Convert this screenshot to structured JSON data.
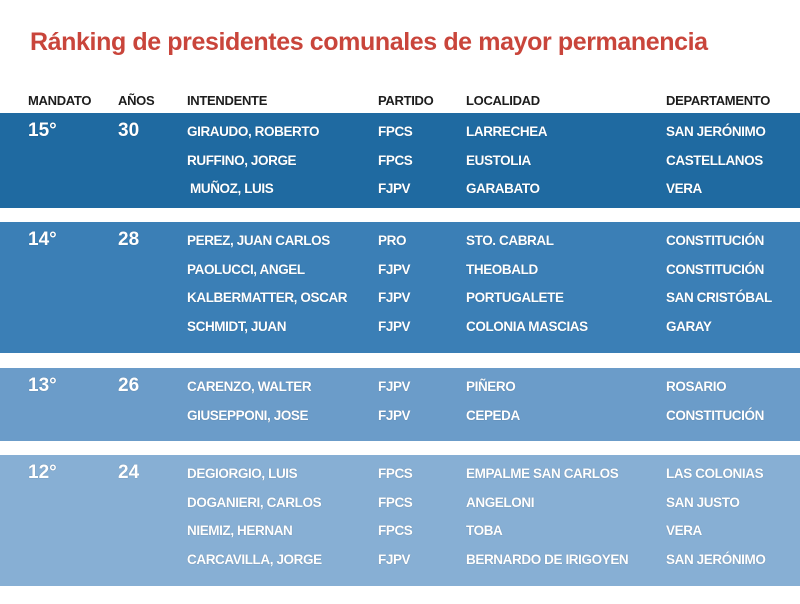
{
  "title": "Ránking de presidentes comunales  de mayor permanencia",
  "table": {
    "headers": [
      "MANDATO",
      "AÑOS",
      "INTENDENTE",
      "PARTIDO",
      "LOCALIDAD",
      "DEPARTAMENTO"
    ],
    "groups": [
      {
        "mandato": "15°",
        "years": 30,
        "rows": [
          [
            "GIRAUDO, ROBERTO",
            "FPCS",
            "LARRECHEA",
            "SAN JERÓNIMO"
          ],
          [
            "RUFFINO, JORGE",
            "FPCS",
            "EUSTOLIA",
            "CASTELLANOS"
          ],
          [
            "MUÑOZ, LUIS",
            "FJPV",
            "GARABATO",
            "VERA"
          ]
        ]
      },
      {
        "mandato": "14°",
        "years": 28,
        "rows": [
          [
            "PEREZ, JUAN CARLOS",
            "PRO",
            "STO. CABRAL",
            "CONSTITUCIÓN"
          ],
          [
            "PAOLUCCI, ANGEL",
            "FJPV",
            "THEOBALD",
            "CONSTITUCIÓN"
          ],
          [
            "KALBERMATTER, OSCAR",
            "FJPV",
            "PORTUGALETE",
            "SAN CRISTÓBAL"
          ],
          [
            "SCHMIDT, JUAN",
            "FJPV",
            "COLONIA MASCIAS",
            "GARAY"
          ]
        ]
      },
      {
        "mandato": "13°",
        "years": 26,
        "rows": [
          [
            "CARENZO, WALTER",
            "FJPV",
            "PIÑERO",
            "ROSARIO"
          ],
          [
            "GIUSEPPONI, JOSE",
            "FJPV",
            "CEPEDA",
            "CONSTITUCIÓN"
          ]
        ]
      },
      {
        "mandato": "12°",
        "years": 24,
        "rows": [
          [
            "DEGIORGIO, LUIS",
            "FPCS",
            "EMPALME SAN CARLOS",
            "LAS COLONIAS"
          ],
          [
            "DOGANIERI, CARLOS",
            "FPCS",
            "ANGELONI",
            "SAN JUSTO"
          ],
          [
            "NIEMIZ, HERNAN",
            "FPCS",
            "TOBA",
            "VERA"
          ],
          [
            "CARCAVILLA, JORGE",
            "FJPV",
            "BERNARDO DE IRIGOYEN",
            "SAN JERÓNIMO"
          ]
        ]
      }
    ]
  }
}
